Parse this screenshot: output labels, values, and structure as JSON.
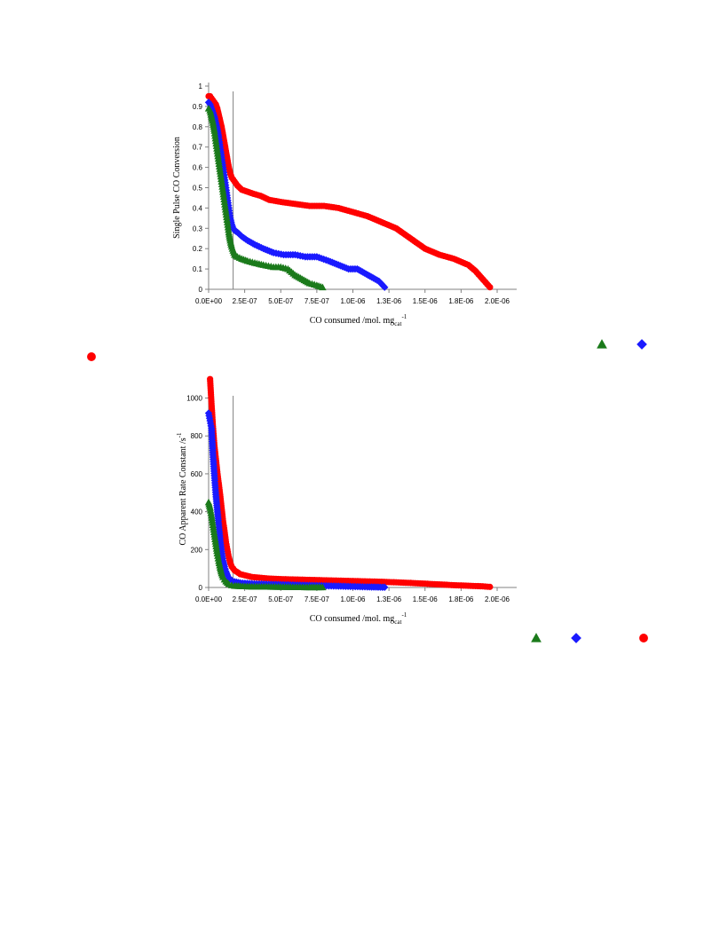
{
  "chart_data": [
    {
      "type": "scatter",
      "xlabel": "CO consumed /mol. mg",
      "xlabel_sub": "cat",
      "xlabel_sup": "-1",
      "ylabel": "Single Pulse CO Conversion",
      "xlim": [
        0,
        2e-06
      ],
      "ylim": [
        0,
        1
      ],
      "x_ticks": [
        0,
        2.5e-07,
        5e-07,
        7.5e-07,
        1e-06,
        1.25e-06,
        1.5e-06,
        1.75e-06,
        2e-06
      ],
      "x_tick_labels": [
        "0.0E+00",
        "2.5E-07",
        "5.0E-07",
        "7.5E-07",
        "1.0E-06",
        "1.3E-06",
        "1.5E-06",
        "1.8E-06",
        "2.0E-06"
      ],
      "y_ticks": [
        0,
        0.1,
        0.2,
        0.3,
        0.4,
        0.5,
        0.6,
        0.7,
        0.8,
        0.9,
        1
      ],
      "y_tick_labels": [
        "0",
        "0.1",
        "0.2",
        "0.3",
        "0.4",
        "0.5",
        "0.6",
        "0.7",
        "0.8",
        "0.9",
        "1"
      ],
      "vline_x": 1.7e-07,
      "legend": [
        {
          "marker": "triangle",
          "color": "#1a7a1a"
        },
        {
          "marker": "diamond",
          "color": "#1a1aff"
        },
        {
          "marker": "circle",
          "color": "#ff0000"
        }
      ],
      "series": [
        {
          "marker": "circle",
          "color": "#ff0000",
          "x": [
            0,
            1e-08,
            2e-08,
            3e-08,
            4e-08,
            5e-08,
            6e-08,
            7e-08,
            8e-08,
            9e-08,
            1e-07,
            1.1e-07,
            1.2e-07,
            1.3e-07,
            1.4e-07,
            1.5e-07,
            1.6e-07,
            1.7e-07,
            1.8e-07,
            2e-07,
            2.3e-07,
            2.7e-07,
            3.1e-07,
            3.6e-07,
            4.2e-07,
            5e-07,
            6e-07,
            7e-07,
            8e-07,
            9e-07,
            1e-06,
            1.1e-06,
            1.2e-06,
            1.3e-06,
            1.4e-06,
            1.5e-06,
            1.6e-06,
            1.7e-06,
            1.8e-06,
            1.85e-06,
            1.9e-06,
            1.95e-06
          ],
          "y": [
            0.95,
            0.95,
            0.94,
            0.93,
            0.92,
            0.91,
            0.89,
            0.86,
            0.83,
            0.8,
            0.76,
            0.72,
            0.68,
            0.64,
            0.6,
            0.57,
            0.55,
            0.54,
            0.53,
            0.51,
            0.49,
            0.48,
            0.47,
            0.46,
            0.44,
            0.43,
            0.42,
            0.41,
            0.41,
            0.4,
            0.38,
            0.36,
            0.33,
            0.3,
            0.25,
            0.2,
            0.17,
            0.15,
            0.12,
            0.09,
            0.05,
            0.01
          ]
        },
        {
          "marker": "diamond",
          "color": "#1a1aff",
          "x": [
            0,
            1e-08,
            2e-08,
            3e-08,
            4e-08,
            5e-08,
            6e-08,
            7e-08,
            8e-08,
            9e-08,
            1e-07,
            1.1e-07,
            1.2e-07,
            1.3e-07,
            1.4e-07,
            1.5e-07,
            1.6e-07,
            1.7e-07,
            1.8e-07,
            2e-07,
            2.3e-07,
            2.7e-07,
            3.2e-07,
            3.8e-07,
            4.5e-07,
            5.2e-07,
            6e-07,
            6.7e-07,
            7.5e-07,
            8.3e-07,
            9e-07,
            9.7e-07,
            1.03e-06,
            1.08e-06,
            1.13e-06,
            1.18e-06,
            1.22e-06
          ],
          "y": [
            0.92,
            0.91,
            0.89,
            0.87,
            0.85,
            0.82,
            0.79,
            0.75,
            0.7,
            0.65,
            0.6,
            0.55,
            0.5,
            0.45,
            0.4,
            0.35,
            0.32,
            0.3,
            0.29,
            0.28,
            0.26,
            0.24,
            0.22,
            0.2,
            0.18,
            0.17,
            0.17,
            0.16,
            0.16,
            0.14,
            0.12,
            0.1,
            0.1,
            0.08,
            0.06,
            0.04,
            0.01
          ]
        },
        {
          "marker": "triangle",
          "color": "#1a7a1a",
          "x": [
            0,
            1e-08,
            2e-08,
            3e-08,
            4e-08,
            5e-08,
            6e-08,
            7e-08,
            8e-08,
            9e-08,
            1e-07,
            1.1e-07,
            1.2e-07,
            1.3e-07,
            1.4e-07,
            1.5e-07,
            1.6e-07,
            1.7e-07,
            1.8e-07,
            2e-07,
            2.3e-07,
            2.7e-07,
            3.2e-07,
            3.8e-07,
            4.5e-07,
            5e-07,
            5.5e-07,
            6e-07,
            6.5e-07,
            7e-07,
            7.5e-07,
            7.9e-07
          ],
          "y": [
            0.89,
            0.88,
            0.85,
            0.82,
            0.78,
            0.73,
            0.68,
            0.63,
            0.58,
            0.53,
            0.48,
            0.43,
            0.38,
            0.33,
            0.28,
            0.24,
            0.21,
            0.19,
            0.17,
            0.16,
            0.15,
            0.14,
            0.13,
            0.12,
            0.11,
            0.11,
            0.1,
            0.07,
            0.05,
            0.03,
            0.02,
            0.01
          ]
        }
      ]
    },
    {
      "type": "scatter",
      "xlabel": "CO consumed /mol. mg",
      "xlabel_sub": "cat",
      "xlabel_sup": "-1",
      "ylabel": "CO Apparent Rate Constant /s",
      "ylabel_sup": "-1",
      "xlim": [
        0,
        2e-06
      ],
      "ylim": [
        0,
        1040
      ],
      "x_ticks": [
        0,
        2.5e-07,
        5e-07,
        7.5e-07,
        1e-06,
        1.25e-06,
        1.5e-06,
        1.75e-06,
        2e-06
      ],
      "x_tick_labels": [
        "0.0E+00",
        "2.5E-07",
        "5.0E-07",
        "7.5E-07",
        "1.0E-06",
        "1.3E-06",
        "1.5E-06",
        "1.8E-06",
        "2.0E-06"
      ],
      "y_ticks": [
        0,
        200,
        400,
        600,
        800,
        1000
      ],
      "y_tick_labels": [
        "0",
        "200",
        "400",
        "600",
        "800",
        "1000"
      ],
      "vline_x": 1.7e-07,
      "legend": [
        {
          "marker": "triangle",
          "color": "#1a7a1a"
        },
        {
          "marker": "diamond",
          "color": "#1a1aff"
        },
        {
          "marker": "circle",
          "color": "#ff0000"
        }
      ],
      "series": [
        {
          "marker": "circle",
          "color": "#ff0000",
          "x": [
            1e-08,
            2e-08,
            3e-08,
            4e-08,
            5e-08,
            6e-08,
            7e-08,
            8e-08,
            9e-08,
            1e-07,
            1.1e-07,
            1.2e-07,
            1.3e-07,
            1.4e-07,
            1.5e-07,
            1.6e-07,
            1.8e-07,
            2.2e-07,
            3e-07,
            4e-07,
            5e-07,
            6e-07,
            7e-07,
            8e-07,
            9e-07,
            1e-06,
            1.1e-06,
            1.2e-06,
            1.3e-06,
            1.4e-06,
            1.5e-06,
            1.6e-06,
            1.7e-06,
            1.8e-06,
            1.9e-06,
            1.95e-06
          ],
          "y": [
            1100,
            970,
            850,
            750,
            680,
            610,
            550,
            490,
            420,
            350,
            300,
            240,
            200,
            160,
            130,
            110,
            90,
            70,
            55,
            48,
            44,
            42,
            40,
            38,
            36,
            34,
            32,
            30,
            27,
            24,
            20,
            16,
            12,
            9,
            6,
            3
          ]
        },
        {
          "marker": "diamond",
          "color": "#1a1aff",
          "x": [
            0,
            1e-08,
            2e-08,
            3e-08,
            4e-08,
            5e-08,
            6e-08,
            7e-08,
            8e-08,
            9e-08,
            1e-07,
            1.1e-07,
            1.2e-07,
            1.3e-07,
            1.4e-07,
            1.6e-07,
            1.8e-07,
            2.2e-07,
            3e-07,
            4e-07,
            5e-07,
            6e-07,
            7e-07,
            8e-07,
            9e-07,
            1e-06,
            1.1e-06,
            1.22e-06
          ],
          "y": [
            920,
            880,
            840,
            700,
            590,
            490,
            410,
            330,
            250,
            190,
            140,
            110,
            85,
            65,
            50,
            38,
            30,
            24,
            20,
            17,
            15,
            13,
            11,
            9,
            7,
            5,
            3,
            1
          ]
        },
        {
          "marker": "triangle",
          "color": "#1a7a1a",
          "x": [
            0,
            1e-08,
            2e-08,
            3e-08,
            4e-08,
            5e-08,
            6e-08,
            7e-08,
            8e-08,
            9e-08,
            1e-07,
            1.1e-07,
            1.2e-07,
            1.3e-07,
            1.4e-07,
            1.6e-07,
            1.8e-07,
            2.2e-07,
            3e-07,
            4e-07,
            5e-07,
            6e-07,
            7e-07,
            7.9e-07
          ],
          "y": [
            450,
            420,
            380,
            330,
            280,
            230,
            180,
            140,
            105,
            75,
            55,
            42,
            32,
            25,
            18,
            12,
            9,
            7,
            5,
            4,
            3,
            2,
            1,
            1
          ]
        }
      ]
    }
  ]
}
